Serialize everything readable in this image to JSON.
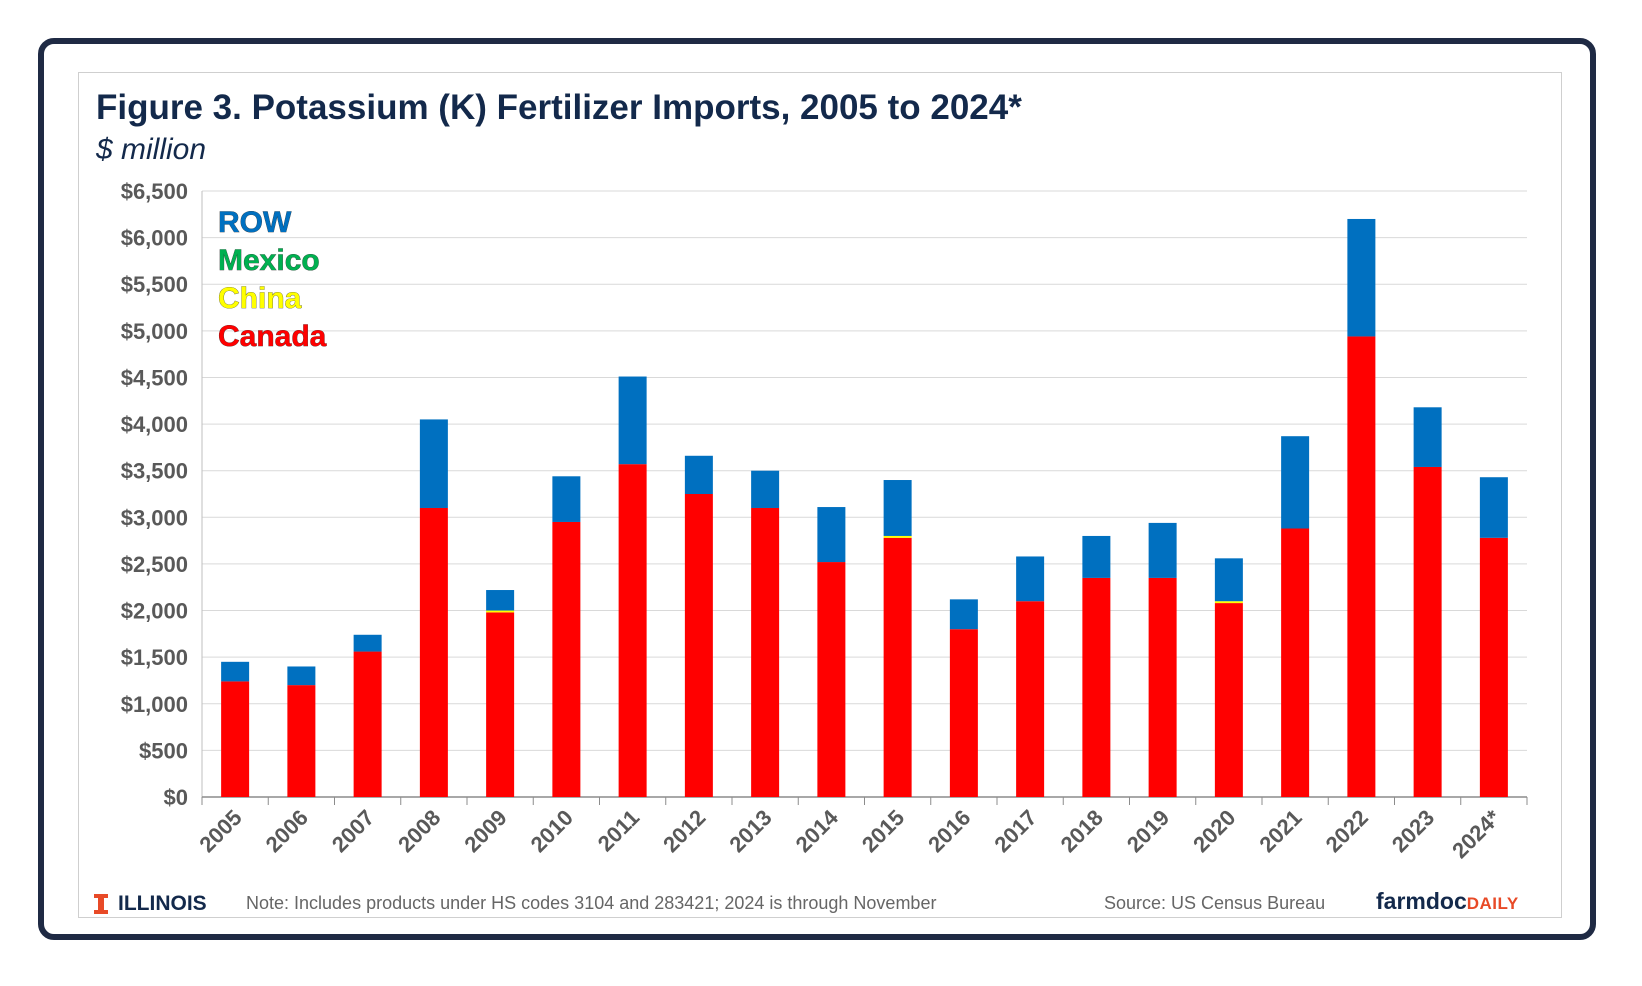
{
  "title": "Figure 3. Potassium (K) Fertilizer Imports, 2005 to 2024*",
  "subtitle": "$ million",
  "footer": {
    "logo_text": "ILLINOIS",
    "note": "Note: Includes products under HS codes 3104 and 283421; 2024 is through November",
    "source": "Source: US Census Bureau",
    "brand_main": "farmdoc",
    "brand_accent": "DAILY"
  },
  "colors": {
    "title": "#13294b",
    "canada": "#ff0000",
    "china": "#ffff00",
    "mexico": "#00b050",
    "row": "#0070c0",
    "frame": "#1f2a44",
    "brand_accent": "#e84a27"
  },
  "chart_data": {
    "type": "bar",
    "stacked": true,
    "categories": [
      "2005",
      "2006",
      "2007",
      "2008",
      "2009",
      "2010",
      "2011",
      "2012",
      "2013",
      "2014",
      "2015",
      "2016",
      "2017",
      "2018",
      "2019",
      "2020",
      "2021",
      "2022",
      "2023",
      "2024*"
    ],
    "ytick_labels": [
      "$0",
      "$500",
      "$1,000",
      "$1,500",
      "$2,000",
      "$2,500",
      "$3,000",
      "$3,500",
      "$4,000",
      "$4,500",
      "$5,000",
      "$5,500",
      "$6,000",
      "$6,500"
    ],
    "ylim": [
      0,
      6500
    ],
    "ytick_step": 500,
    "grid": true,
    "legend_position": "top-left",
    "series": [
      {
        "name": "Canada",
        "color": "#ff0000",
        "values": [
          1240,
          1200,
          1560,
          3100,
          1980,
          2950,
          3570,
          3250,
          3100,
          2520,
          2780,
          1800,
          2100,
          2350,
          2350,
          2080,
          2880,
          4940,
          3540,
          2780
        ]
      },
      {
        "name": "China",
        "color": "#ffff00",
        "values": [
          0,
          0,
          0,
          0,
          20,
          0,
          0,
          0,
          0,
          0,
          20,
          0,
          0,
          0,
          0,
          20,
          0,
          0,
          0,
          0
        ]
      },
      {
        "name": "Mexico",
        "color": "#00b050",
        "values": [
          0,
          0,
          0,
          0,
          0,
          0,
          0,
          0,
          0,
          0,
          0,
          0,
          0,
          0,
          0,
          0,
          0,
          0,
          0,
          0
        ]
      },
      {
        "name": "ROW",
        "color": "#0070c0",
        "values": [
          210,
          200,
          180,
          950,
          220,
          490,
          940,
          410,
          400,
          590,
          600,
          320,
          480,
          450,
          590,
          460,
          990,
          1260,
          640,
          650
        ]
      }
    ],
    "legend_order": [
      "ROW",
      "Mexico",
      "China",
      "Canada"
    ]
  }
}
